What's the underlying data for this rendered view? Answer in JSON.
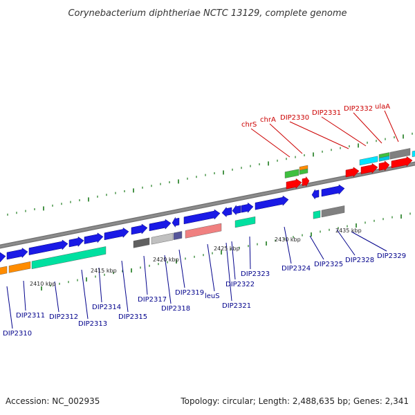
{
  "title": "Corynebacterium diphtheriae NCTC 13129, complete genome",
  "footer": {
    "accession": "Accession: NC_002935",
    "topology": "Topology: circular; Length: 2,488,635 bp; Genes: 2,341"
  },
  "colors": {
    "forward_gene": "#1a1ae6",
    "reverse_gene": "#ff0000",
    "label_forward": "#00008b",
    "label_reverse": "#cc0000",
    "backbone": "#8c8c8c",
    "tick": "#1a7a1a"
  },
  "kbp_markers": [
    "2410 kbp",
    "2415 kbp",
    "2420 kbp",
    "2425 kbp",
    "2430 kbp",
    "2435 kbp"
  ],
  "forward_labels": [
    "DIP2310",
    "DIP2311",
    "DIP2312",
    "DIP2313",
    "DIP2314",
    "DIP2315",
    "DIP2317",
    "DIP2318",
    "DIP2319",
    "leuS",
    "DIP2321",
    "DIP2322",
    "DIP2323",
    "DIP2324",
    "DIP2325",
    "DIP2328",
    "DIP2329"
  ],
  "reverse_labels": [
    "chrS",
    "chrA",
    "DIP2330",
    "DIP2331",
    "DIP2332",
    "ulaA"
  ]
}
